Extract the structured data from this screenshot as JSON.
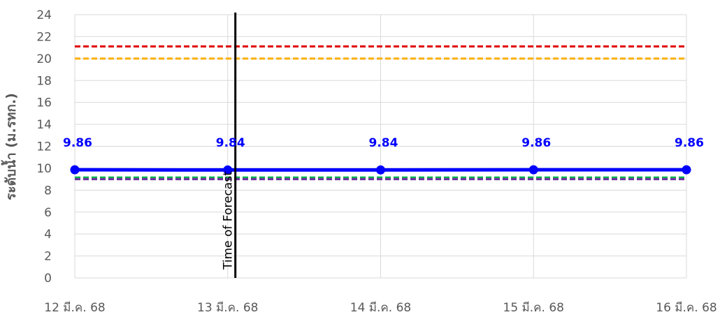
{
  "chart_data": {
    "type": "line",
    "title": "",
    "xlabel": "",
    "ylabel": "ระดับน้ำ (ม.รทก.)",
    "ylim": [
      0,
      24
    ],
    "yticks": [
      "0",
      "2",
      "4",
      "6",
      "8",
      "10",
      "12",
      "14",
      "16",
      "18",
      "20",
      "22",
      "24"
    ],
    "x_ticks": [
      "12 มี.ค. 68",
      "13 มี.ค. 68",
      "14 มี.ค. 68",
      "15 มี.ค. 68",
      "16 มี.ค. 68"
    ],
    "grid": true,
    "series": [
      {
        "values": [
          9.86,
          9.84,
          9.84,
          9.86,
          9.86
        ],
        "x": [
          0,
          1,
          2,
          3,
          4
        ],
        "data_labels": [
          "9.86",
          "9.84",
          "9.84",
          "9.86",
          "9.86"
        ],
        "color": "#0000ff"
      }
    ],
    "reference_lines": [
      {
        "y": 21.1,
        "color": "#e00000",
        "style": "dashed"
      },
      {
        "y": 20.0,
        "color": "#ffb000",
        "style": "dashed"
      },
      {
        "y": 9.15,
        "color": "#00b050",
        "style": "dashed"
      },
      {
        "y": 9.0,
        "color": "#7030a0",
        "style": "dashed"
      }
    ],
    "forecast_line": {
      "x": 1.05,
      "label": "Time of Forecast",
      "color": "#000000"
    }
  }
}
